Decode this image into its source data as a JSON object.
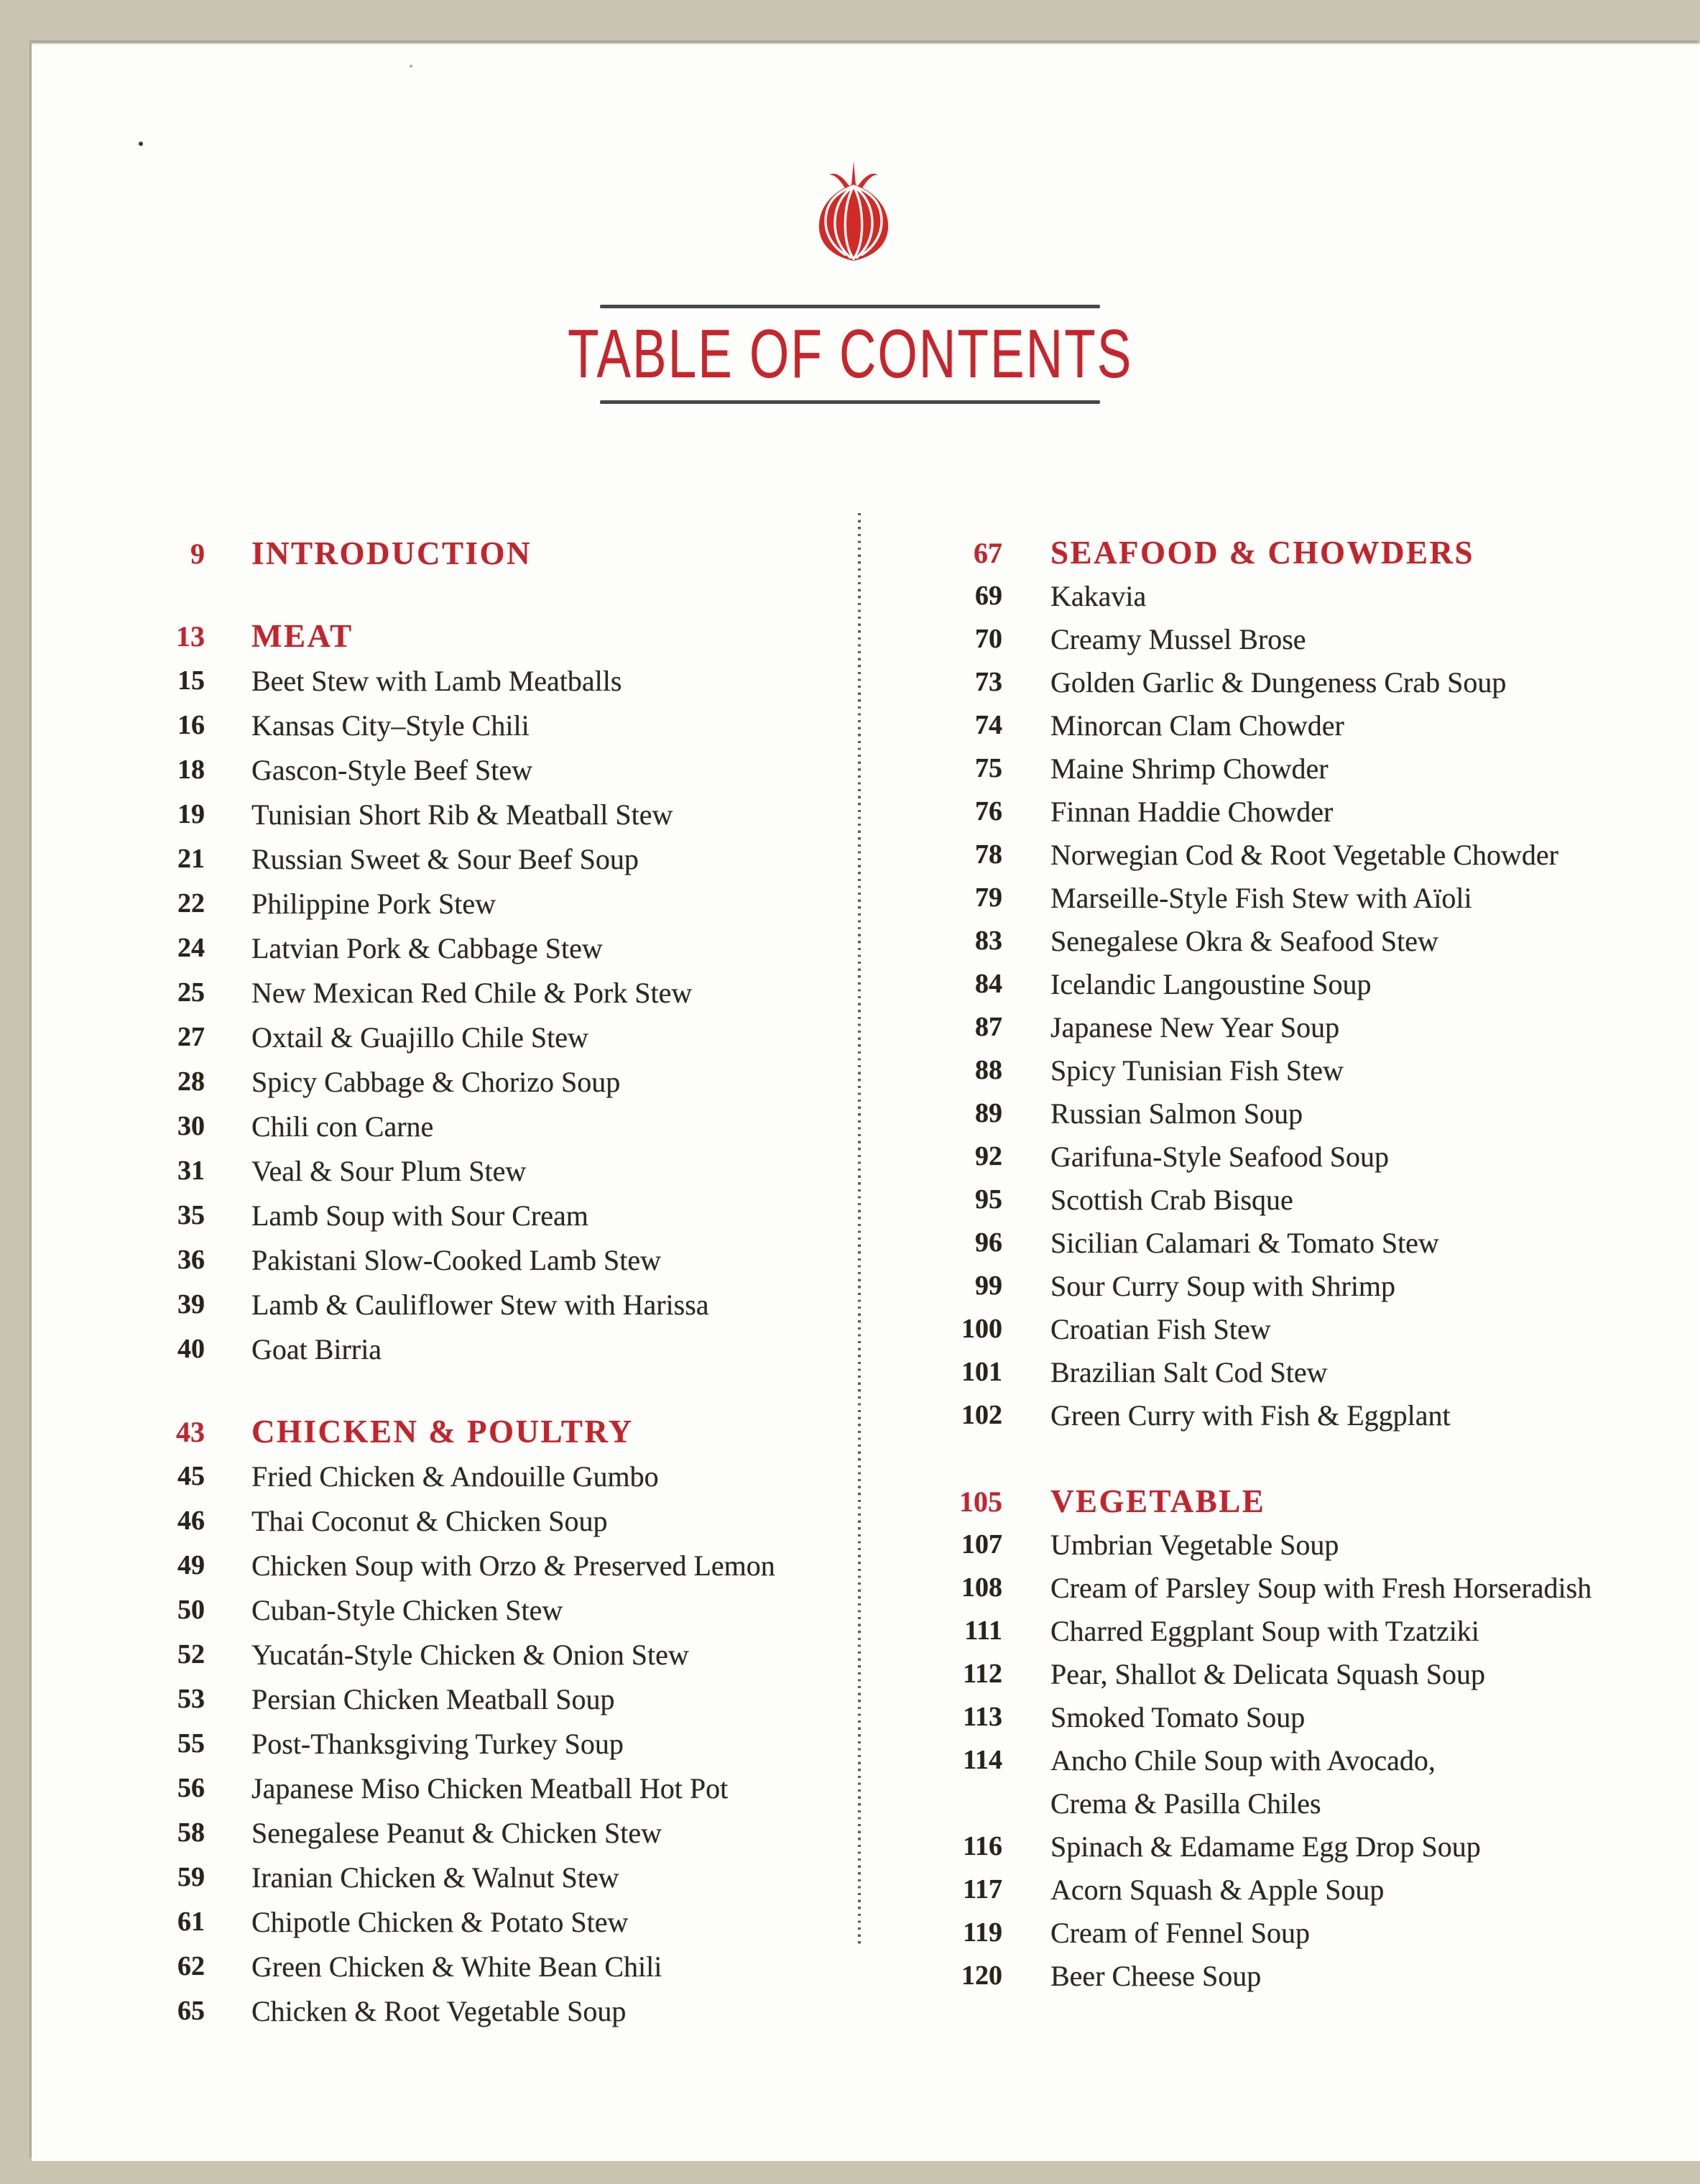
{
  "header": {
    "title": "TABLE OF CONTENTS",
    "logo_icon": "red-onion"
  },
  "colors": {
    "accent_red": "#c3242c",
    "ink": "#2c2721",
    "rule_gray": "#45494a",
    "divider_dot": "#533a3a",
    "paper": "#fdfdfb",
    "backdrop": "#c9c4b2"
  },
  "toc": {
    "left_column": {
      "sections": [
        {
          "number": "9",
          "title": "INTRODUCTION",
          "items": []
        },
        {
          "number": "13",
          "title": "MEAT",
          "items": [
            {
              "page": "15",
              "label": "Beet Stew with Lamb Meatballs"
            },
            {
              "page": "16",
              "label": "Kansas City–Style Chili"
            },
            {
              "page": "18",
              "label": "Gascon-Style Beef Stew"
            },
            {
              "page": "19",
              "label": "Tunisian Short Rib & Meatball Stew"
            },
            {
              "page": "21",
              "label": "Russian Sweet & Sour Beef Soup"
            },
            {
              "page": "22",
              "label": "Philippine Pork Stew"
            },
            {
              "page": "24",
              "label": "Latvian Pork & Cabbage Stew"
            },
            {
              "page": "25",
              "label": "New Mexican Red Chile & Pork Stew"
            },
            {
              "page": "27",
              "label": "Oxtail & Guajillo Chile Stew"
            },
            {
              "page": "28",
              "label": "Spicy Cabbage & Chorizo Soup"
            },
            {
              "page": "30",
              "label": "Chili con Carne"
            },
            {
              "page": "31",
              "label": "Veal & Sour Plum Stew"
            },
            {
              "page": "35",
              "label": "Lamb Soup with Sour Cream"
            },
            {
              "page": "36",
              "label": "Pakistani Slow-Cooked Lamb Stew"
            },
            {
              "page": "39",
              "label": "Lamb & Cauliflower Stew with Harissa"
            },
            {
              "page": "40",
              "label": "Goat Birria"
            }
          ]
        },
        {
          "number": "43",
          "title": "CHICKEN & POULTRY",
          "items": [
            {
              "page": "45",
              "label": "Fried Chicken & Andouille Gumbo"
            },
            {
              "page": "46",
              "label": "Thai Coconut & Chicken Soup"
            },
            {
              "page": "49",
              "label": "Chicken Soup with Orzo & Preserved Lemon"
            },
            {
              "page": "50",
              "label": "Cuban-Style Chicken Stew"
            },
            {
              "page": "52",
              "label": "Yucatán-Style Chicken & Onion Stew"
            },
            {
              "page": "53",
              "label": "Persian Chicken Meatball Soup"
            },
            {
              "page": "55",
              "label": "Post-Thanksgiving Turkey Soup"
            },
            {
              "page": "56",
              "label": "Japanese Miso Chicken Meatball Hot Pot"
            },
            {
              "page": "58",
              "label": "Senegalese Peanut & Chicken Stew"
            },
            {
              "page": "59",
              "label": "Iranian Chicken & Walnut Stew"
            },
            {
              "page": "61",
              "label": "Chipotle Chicken & Potato Stew"
            },
            {
              "page": "62",
              "label": "Green Chicken & White Bean Chili"
            },
            {
              "page": "65",
              "label": "Chicken & Root Vegetable Soup"
            }
          ]
        }
      ]
    },
    "right_column": {
      "sections": [
        {
          "number": "67",
          "title": "SEAFOOD & CHOWDERS",
          "items": [
            {
              "page": "69",
              "label": "Kakavia"
            },
            {
              "page": "70",
              "label": "Creamy Mussel Brose"
            },
            {
              "page": "73",
              "label": "Golden Garlic & Dungeness Crab Soup"
            },
            {
              "page": "74",
              "label": "Minorcan Clam Chowder"
            },
            {
              "page": "75",
              "label": "Maine Shrimp Chowder"
            },
            {
              "page": "76",
              "label": "Finnan Haddie Chowder"
            },
            {
              "page": "78",
              "label": "Norwegian Cod & Root Vegetable Chowder"
            },
            {
              "page": "79",
              "label": "Marseille-Style Fish Stew with Aïoli"
            },
            {
              "page": "83",
              "label": "Senegalese Okra & Seafood Stew"
            },
            {
              "page": "84",
              "label": "Icelandic Langoustine Soup"
            },
            {
              "page": "87",
              "label": "Japanese New Year Soup"
            },
            {
              "page": "88",
              "label": "Spicy Tunisian Fish Stew"
            },
            {
              "page": "89",
              "label": "Russian Salmon Soup"
            },
            {
              "page": "92",
              "label": "Garifuna-Style Seafood Soup"
            },
            {
              "page": "95",
              "label": "Scottish Crab Bisque"
            },
            {
              "page": "96",
              "label": "Sicilian Calamari & Tomato Stew"
            },
            {
              "page": "99",
              "label": "Sour Curry Soup with Shrimp"
            },
            {
              "page": "100",
              "label": "Croatian Fish Stew"
            },
            {
              "page": "101",
              "label": "Brazilian Salt Cod Stew"
            },
            {
              "page": "102",
              "label": "Green Curry with Fish & Eggplant"
            }
          ]
        },
        {
          "number": "105",
          "title": "VEGETABLE",
          "items": [
            {
              "page": "107",
              "label": "Umbrian Vegetable Soup"
            },
            {
              "page": "108",
              "label": "Cream of Parsley Soup with Fresh Horseradish"
            },
            {
              "page": "111",
              "label": "Charred Eggplant Soup with Tzatziki"
            },
            {
              "page": "112",
              "label": "Pear, Shallot & Delicata Squash Soup"
            },
            {
              "page": "113",
              "label": "Smoked Tomato Soup"
            },
            {
              "page": "114",
              "label": "Ancho Chile Soup with Avocado,",
              "label2": "Crema & Pasilla Chiles"
            },
            {
              "page": "116",
              "label": "Spinach & Edamame Egg Drop Soup"
            },
            {
              "page": "117",
              "label": "Acorn Squash & Apple Soup"
            },
            {
              "page": "119",
              "label": "Cream of Fennel Soup"
            },
            {
              "page": "120",
              "label": "Beer Cheese Soup"
            }
          ]
        }
      ]
    }
  }
}
